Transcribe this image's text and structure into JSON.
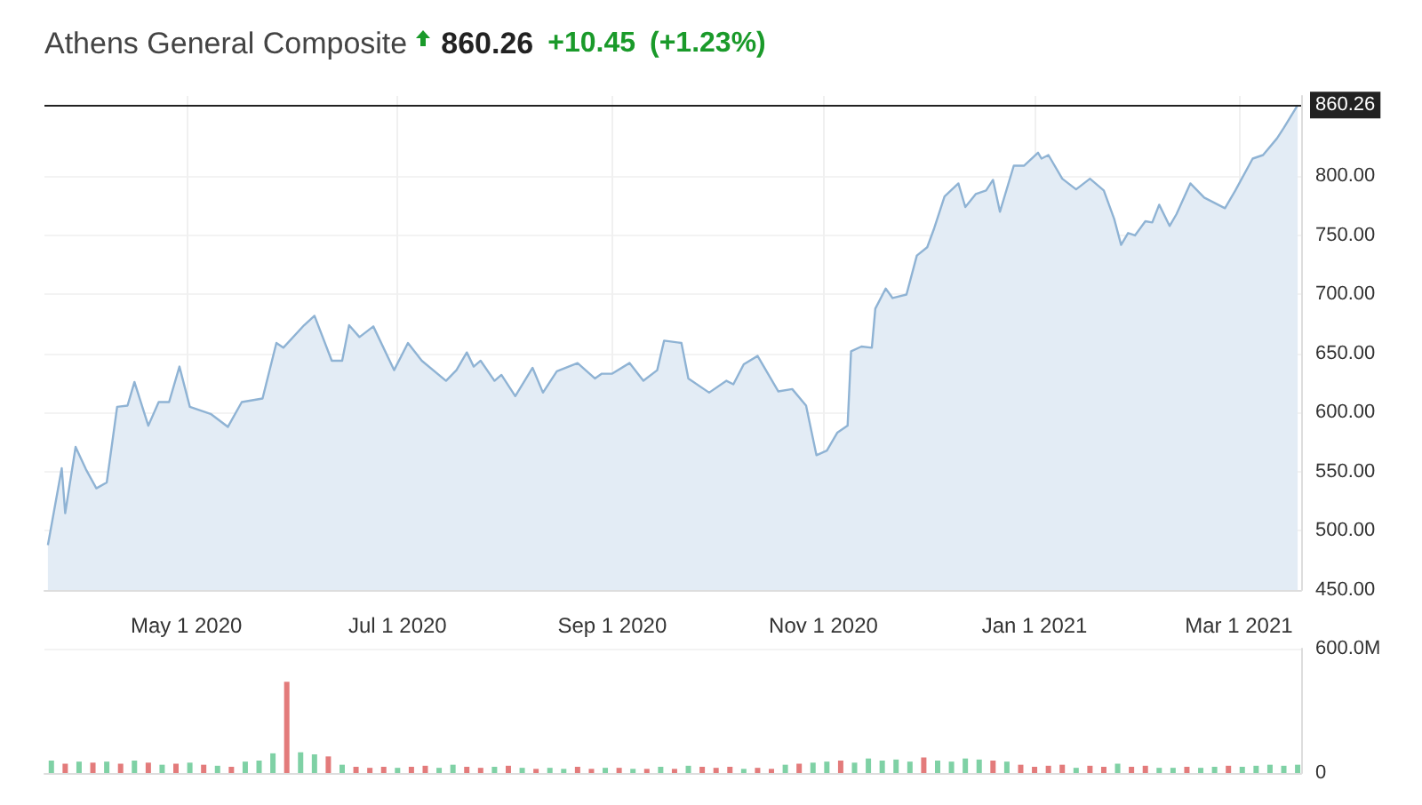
{
  "chart_data": [
    {
      "type": "area",
      "title": "Athens General Composite",
      "annotations": [
        "860.26",
        "+10.45",
        "(+1.23%)"
      ],
      "color": "#8fb3d4",
      "marker": "none",
      "grid": true,
      "x": [
        "2020-03-22",
        "2020-03-26",
        "2020-03-27",
        "2020-03-30",
        "2020-04-02",
        "2020-04-05",
        "2020-04-08",
        "2020-04-11",
        "2020-04-14",
        "2020-04-16",
        "2020-04-20",
        "2020-04-23",
        "2020-04-26",
        "2020-04-29",
        "2020-05-02",
        "2020-05-08",
        "2020-05-13",
        "2020-05-17",
        "2020-05-23",
        "2020-05-27",
        "2020-05-29",
        "2020-06-04",
        "2020-06-07",
        "2020-06-12",
        "2020-06-15",
        "2020-06-17",
        "2020-06-20",
        "2020-06-24",
        "2020-06-30",
        "2020-07-04",
        "2020-07-08",
        "2020-07-15",
        "2020-07-18",
        "2020-07-21",
        "2020-07-23",
        "2020-07-25",
        "2020-07-29",
        "2020-07-31",
        "2020-08-04",
        "2020-08-09",
        "2020-08-12",
        "2020-08-16",
        "2020-08-22",
        "2020-08-27",
        "2020-08-29",
        "2020-09-01",
        "2020-09-06",
        "2020-09-10",
        "2020-09-14",
        "2020-09-16",
        "2020-09-21",
        "2020-09-23",
        "2020-09-29",
        "2020-10-04",
        "2020-10-06",
        "2020-10-09",
        "2020-10-13",
        "2020-10-16",
        "2020-10-19",
        "2020-10-23",
        "2020-10-27",
        "2020-10-30",
        "2020-11-02",
        "2020-11-05",
        "2020-11-08",
        "2020-11-09",
        "2020-11-12",
        "2020-11-15",
        "2020-11-16",
        "2020-11-19",
        "2020-11-21",
        "2020-11-25",
        "2020-11-28",
        "2020-12-01",
        "2020-12-03",
        "2020-12-06",
        "2020-12-10",
        "2020-12-12",
        "2020-12-15",
        "2020-12-18",
        "2020-12-20",
        "2020-12-22",
        "2020-12-26",
        "2020-12-29",
        "2021-01-02",
        "2021-01-03",
        "2021-01-05",
        "2021-01-09",
        "2021-01-13",
        "2021-01-17",
        "2021-01-21",
        "2021-01-24",
        "2021-01-26",
        "2021-01-28",
        "2021-01-30",
        "2021-02-02",
        "2021-02-04",
        "2021-02-06",
        "2021-02-09",
        "2021-02-11",
        "2021-02-15",
        "2021-02-19",
        "2021-02-25",
        "2021-02-28",
        "2021-03-05",
        "2021-03-08",
        "2021-03-12",
        "2021-03-14",
        "2021-03-18"
      ],
      "values": [
        488,
        553,
        515,
        571,
        552,
        536,
        541,
        605,
        606,
        626,
        589,
        609,
        609,
        639,
        605,
        599,
        588,
        609,
        612,
        659,
        655,
        674,
        682,
        644,
        644,
        674,
        664,
        673,
        636,
        659,
        644,
        627,
        636,
        651,
        639,
        644,
        627,
        632,
        614,
        638,
        617,
        635,
        642,
        629,
        633,
        633,
        642,
        627,
        636,
        661,
        659,
        629,
        617,
        627,
        624,
        641,
        648,
        633,
        618,
        620,
        606,
        564,
        568,
        583,
        589,
        652,
        656,
        655,
        688,
        705,
        697,
        700,
        733,
        740,
        756,
        783,
        794,
        774,
        785,
        788,
        797,
        770,
        809,
        809,
        820,
        815,
        818,
        798,
        789,
        798,
        788,
        764,
        742,
        752,
        750,
        762,
        761,
        776,
        758,
        768,
        794,
        782,
        773,
        788,
        815,
        818,
        832,
        841,
        860.26
      ],
      "xlim": [
        "2020-03-21",
        "2021-03-19"
      ],
      "xticks": [
        {
          "value": "2020-05-01",
          "label": "May 1 2020"
        },
        {
          "value": "2020-07-01",
          "label": "Jul 1 2020"
        },
        {
          "value": "2020-09-01",
          "label": "Sep 1 2020"
        },
        {
          "value": "2020-11-01",
          "label": "Nov 1 2020"
        },
        {
          "value": "2021-01-01",
          "label": "Jan 1 2021"
        },
        {
          "value": "2021-03-01",
          "label": "Mar 1 2021"
        }
      ],
      "ylim": [
        450,
        868
      ],
      "yticks": [
        {
          "value": 450,
          "label": "450.00"
        },
        {
          "value": 500,
          "label": "500.00"
        },
        {
          "value": 550,
          "label": "550.00"
        },
        {
          "value": 600,
          "label": "600.00"
        },
        {
          "value": 650,
          "label": "650.00"
        },
        {
          "value": 700,
          "label": "700.00"
        },
        {
          "value": 750,
          "label": "750.00"
        },
        {
          "value": 800,
          "label": "800.00"
        }
      ],
      "ref_lines": [
        {
          "axis": "y",
          "value": 860.26,
          "label": "860.26",
          "color": "#222222"
        }
      ]
    },
    {
      "type": "bar",
      "grid": true,
      "tick_labels": "y",
      "x": [
        "2020-03-23",
        "2020-03-27",
        "2020-03-31",
        "2020-04-04",
        "2020-04-08",
        "2020-04-12",
        "2020-04-16",
        "2020-04-20",
        "2020-04-24",
        "2020-04-28",
        "2020-05-02",
        "2020-05-06",
        "2020-05-10",
        "2020-05-14",
        "2020-05-18",
        "2020-05-22",
        "2020-05-26",
        "2020-05-30",
        "2020-06-03",
        "2020-06-07",
        "2020-06-11",
        "2020-06-15",
        "2020-06-19",
        "2020-06-23",
        "2020-06-27",
        "2020-07-01",
        "2020-07-05",
        "2020-07-09",
        "2020-07-13",
        "2020-07-17",
        "2020-07-21",
        "2020-07-25",
        "2020-07-29",
        "2020-08-02",
        "2020-08-06",
        "2020-08-10",
        "2020-08-14",
        "2020-08-18",
        "2020-08-22",
        "2020-08-26",
        "2020-08-30",
        "2020-09-03",
        "2020-09-07",
        "2020-09-11",
        "2020-09-15",
        "2020-09-19",
        "2020-09-23",
        "2020-09-27",
        "2020-10-01",
        "2020-10-05",
        "2020-10-09",
        "2020-10-13",
        "2020-10-17",
        "2020-10-21",
        "2020-10-25",
        "2020-10-29",
        "2020-11-02",
        "2020-11-06",
        "2020-11-10",
        "2020-11-14",
        "2020-11-18",
        "2020-11-22",
        "2020-11-26",
        "2020-11-30",
        "2020-12-04",
        "2020-12-08",
        "2020-12-12",
        "2020-12-16",
        "2020-12-20",
        "2020-12-24",
        "2020-12-28",
        "2021-01-01",
        "2021-01-05",
        "2021-01-09",
        "2021-01-13",
        "2021-01-17",
        "2021-01-21",
        "2021-01-25",
        "2021-01-29",
        "2021-02-02",
        "2021-02-06",
        "2021-02-10",
        "2021-02-14",
        "2021-02-18",
        "2021-02-22",
        "2021-02-26",
        "2021-03-02",
        "2021-03-06",
        "2021-03-10",
        "2021-03-14",
        "2021-03-18"
      ],
      "values": [
        60,
        45,
        55,
        50,
        55,
        45,
        60,
        50,
        40,
        45,
        50,
        40,
        35,
        30,
        55,
        60,
        95,
        440,
        100,
        90,
        80,
        40,
        30,
        25,
        30,
        25,
        30,
        35,
        25,
        40,
        30,
        25,
        30,
        35,
        25,
        20,
        25,
        20,
        30,
        20,
        25,
        25,
        20,
        20,
        30,
        20,
        35,
        30,
        25,
        30,
        20,
        25,
        20,
        40,
        45,
        50,
        55,
        60,
        50,
        70,
        60,
        65,
        55,
        75,
        60,
        55,
        70,
        65,
        60,
        55,
        40,
        30,
        35,
        40,
        25,
        35,
        30,
        45,
        30,
        35,
        25,
        25,
        30,
        25,
        30,
        35,
        30,
        35,
        40,
        35,
        40
      ],
      "colors": [
        "#7fd1a5",
        "#e37b7b",
        "#7fd1a5",
        "#e37b7b",
        "#7fd1a5",
        "#e37b7b",
        "#7fd1a5",
        "#e37b7b",
        "#7fd1a5",
        "#e37b7b",
        "#7fd1a5",
        "#e37b7b",
        "#7fd1a5",
        "#e37b7b",
        "#7fd1a5",
        "#7fd1a5",
        "#7fd1a5",
        "#e37b7b",
        "#7fd1a5",
        "#7fd1a5",
        "#e37b7b",
        "#7fd1a5",
        "#e37b7b",
        "#e37b7b",
        "#e37b7b",
        "#7fd1a5",
        "#e37b7b",
        "#e37b7b",
        "#7fd1a5",
        "#7fd1a5",
        "#e37b7b",
        "#e37b7b",
        "#7fd1a5",
        "#e37b7b",
        "#7fd1a5",
        "#e37b7b",
        "#7fd1a5",
        "#7fd1a5",
        "#e37b7b",
        "#e37b7b",
        "#7fd1a5",
        "#e37b7b",
        "#7fd1a5",
        "#e37b7b",
        "#7fd1a5",
        "#e37b7b",
        "#7fd1a5",
        "#e37b7b",
        "#e37b7b",
        "#e37b7b",
        "#7fd1a5",
        "#e37b7b",
        "#e37b7b",
        "#7fd1a5",
        "#e37b7b",
        "#7fd1a5",
        "#7fd1a5",
        "#e37b7b",
        "#7fd1a5",
        "#7fd1a5",
        "#7fd1a5",
        "#7fd1a5",
        "#7fd1a5",
        "#e37b7b",
        "#7fd1a5",
        "#7fd1a5",
        "#7fd1a5",
        "#7fd1a5",
        "#e37b7b",
        "#7fd1a5",
        "#e37b7b",
        "#e37b7b",
        "#e37b7b",
        "#e37b7b",
        "#7fd1a5",
        "#e37b7b",
        "#e37b7b",
        "#7fd1a5",
        "#e37b7b",
        "#e37b7b",
        "#7fd1a5",
        "#7fd1a5",
        "#e37b7b",
        "#7fd1a5",
        "#7fd1a5",
        "#e37b7b",
        "#7fd1a5",
        "#7fd1a5",
        "#7fd1a5",
        "#7fd1a5",
        "#7fd1a5"
      ],
      "xlim": [
        "2020-03-21",
        "2021-03-19"
      ],
      "ylim": [
        0,
        600
      ],
      "yticks": [
        0,
        {
          "value": 600,
          "label": "600.0M"
        }
      ]
    }
  ]
}
